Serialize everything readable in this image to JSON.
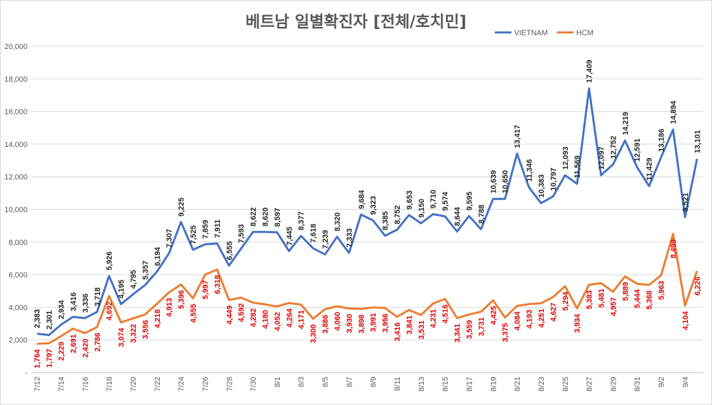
{
  "chart_data": {
    "type": "line",
    "title": "베트남  일별확진자 [전체/호치민]",
    "xlabel": "",
    "ylabel": "",
    "ylim": [
      0,
      20000
    ],
    "y_ticks": [
      "-",
      "2,000",
      "4,000",
      "6,000",
      "8,000",
      "10,000",
      "12,000",
      "14,000",
      "16,000",
      "18,000",
      "20,000"
    ],
    "x": [
      "7/12",
      "7/13",
      "7/14",
      "7/15",
      "7/16",
      "7/17",
      "7/18",
      "7/19",
      "7/20",
      "7/21",
      "7/22",
      "7/23",
      "7/24",
      "7/25",
      "7/26",
      "7/27",
      "7/28",
      "7/29",
      "7/30",
      "7/31",
      "8/1",
      "8/2",
      "8/3",
      "8/4",
      "8/5",
      "8/6",
      "8/7",
      "8/8",
      "8/9",
      "8/10",
      "8/11",
      "8/12",
      "8/13",
      "8/14",
      "8/15",
      "8/16",
      "8/17",
      "8/18",
      "8/19",
      "8/20",
      "8/21",
      "8/22",
      "8/23",
      "8/24",
      "8/25",
      "8/26",
      "8/27",
      "8/28",
      "8/29",
      "8/30",
      "8/31",
      "9/1",
      "9/2",
      "9/3",
      "9/4",
      "9/5"
    ],
    "x_tick_labels": [
      "7/12",
      "7/14",
      "7/16",
      "7/18",
      "7/20",
      "7/22",
      "7/24",
      "7/26",
      "7/28",
      "7/30",
      "8/1",
      "8/3",
      "8/5",
      "8/7",
      "8/9",
      "8/11",
      "8/13",
      "8/15",
      "8/17",
      "8/19",
      "8/21",
      "8/23",
      "8/25",
      "8/27",
      "8/29",
      "8/31",
      "9/2",
      "9/4"
    ],
    "legend_position": "top-right",
    "grid": true,
    "series": [
      {
        "name": "VIETNAM",
        "color": "#4472c4",
        "label_color": "#262626",
        "values": [
          2383,
          2301,
          2934,
          3416,
          3336,
          3718,
          5926,
          4195,
          4795,
          5357,
          6194,
          7307,
          9225,
          7525,
          7859,
          7911,
          6555,
          7593,
          8622,
          8620,
          8597,
          7445,
          8377,
          7618,
          7239,
          8320,
          7333,
          9684,
          9323,
          8385,
          8752,
          9653,
          9150,
          9710,
          9574,
          8644,
          9595,
          8788,
          10639,
          10650,
          13417,
          11346,
          10383,
          10797,
          12093,
          11569,
          17409,
          12097,
          12752,
          14219,
          12591,
          11429,
          13186,
          14894,
          9521,
          13101
        ]
      },
      {
        "name": "HCM",
        "color": "#ed7d31",
        "label_color": "#e00000",
        "values": [
          1764,
          1797,
          2229,
          2691,
          2420,
          2786,
          4692,
          3074,
          3322,
          3556,
          4218,
          4913,
          5396,
          4555,
          5997,
          6318,
          4449,
          4592,
          4282,
          4180,
          4052,
          4264,
          4171,
          3300,
          3886,
          4060,
          3930,
          3898,
          3991,
          3956,
          3416,
          3841,
          3531,
          4231,
          4516,
          3341,
          3559,
          3731,
          4425,
          3375,
          4084,
          4193,
          4251,
          4627,
          5294,
          3934,
          5383,
          5481,
          4957,
          5889,
          5444,
          5368,
          5963,
          8499,
          4104,
          6226
        ]
      }
    ]
  }
}
